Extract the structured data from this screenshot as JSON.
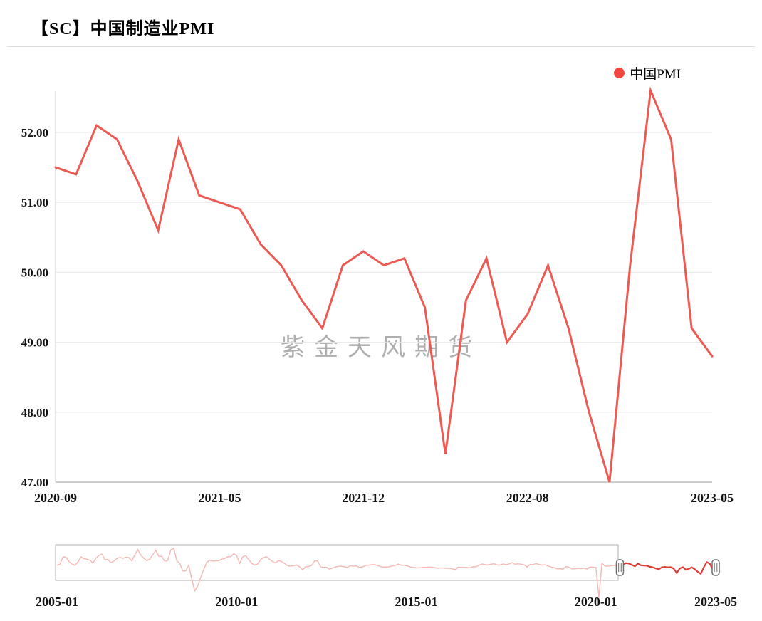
{
  "header": {
    "title": "【SC】中国制造业PMI"
  },
  "legend": {
    "label": "中国PMI",
    "marker_color": "#f2463f"
  },
  "watermark": "紫金天风期货",
  "colors": {
    "line": "#ec5a54",
    "grid": "#e7e7e7",
    "axis": "#9a9a9a",
    "axis_left": "#cccccc",
    "nav_history": "#f5b8b4",
    "nav_selected": "#dd3f38",
    "nav_frame": "#b0b0b0",
    "handle": "#6e6e6e"
  },
  "chart_data": {
    "type": "line",
    "title": "【SC】中国制造业PMI",
    "legend_entries": [
      "中国PMI"
    ],
    "legend_position": "top-right",
    "grid": true,
    "ylim": [
      46.95,
      52.7
    ],
    "yticks": [
      52,
      51,
      50,
      49,
      48,
      47
    ],
    "ytick_labels": [
      "52.00",
      "51.00",
      "50.00",
      "49.00",
      "48.00",
      "47.00"
    ],
    "xtick_labels": [
      "2020-09",
      "2021-05",
      "2021-12",
      "2022-08",
      "2023-05"
    ],
    "xtick_indices": [
      0,
      8,
      15,
      23,
      32
    ],
    "series": [
      {
        "name": "中国PMI",
        "color": "#ec5a54",
        "x": [
          "2020-09",
          "2020-10",
          "2020-11",
          "2020-12",
          "2021-01",
          "2021-02",
          "2021-03",
          "2021-04",
          "2021-05",
          "2021-06",
          "2021-07",
          "2021-08",
          "2021-09",
          "2021-10",
          "2021-11",
          "2021-12",
          "2022-01",
          "2022-02",
          "2022-03",
          "2022-04",
          "2022-05",
          "2022-06",
          "2022-07",
          "2022-08",
          "2022-09",
          "2022-10",
          "2022-11",
          "2022-12",
          "2023-01",
          "2023-02",
          "2023-03",
          "2023-04",
          "2023-05"
        ],
        "values": [
          51.5,
          51.4,
          52.1,
          51.9,
          51.3,
          50.6,
          51.9,
          51.1,
          51.0,
          50.9,
          50.4,
          50.1,
          49.6,
          49.2,
          50.1,
          50.3,
          50.1,
          50.2,
          49.5,
          47.4,
          49.6,
          50.2,
          49.0,
          49.4,
          50.1,
          49.2,
          48.0,
          47.0,
          50.1,
          52.6,
          51.9,
          49.2,
          48.8
        ]
      }
    ],
    "navigator": {
      "type": "line",
      "x_range": [
        "2005-01",
        "2023-05"
      ],
      "xtick_labels": [
        "2005-01",
        "2010-01",
        "2015-01",
        "2020-01",
        "2023-05"
      ],
      "xtick_indices": [
        0,
        60,
        120,
        180,
        220
      ],
      "selected_window": [
        "2020-09",
        "2023-05"
      ],
      "selected_start_index": 188,
      "values": [
        51.1,
        51.6,
        55.1,
        55.0,
        52.9,
        51.7,
        51.1,
        52.6,
        55.1,
        54.3,
        54.0,
        53.5,
        52.1,
        54.5,
        55.8,
        56.4,
        53.8,
        53.9,
        52.4,
        53.1,
        54.3,
        54.9,
        54.4,
        54.9,
        54.8,
        53.2,
        56.1,
        58.6,
        55.9,
        54.5,
        53.3,
        54.0,
        56.1,
        58.2,
        55.4,
        55.3,
        53.0,
        53.4,
        58.4,
        59.2,
        53.3,
        52.0,
        48.4,
        48.4,
        51.2,
        44.6,
        38.8,
        41.2,
        45.3,
        49.0,
        52.4,
        53.5,
        53.1,
        53.2,
        53.3,
        54.0,
        54.3,
        55.2,
        55.2,
        56.6,
        55.8,
        52.0,
        55.1,
        55.7,
        53.9,
        52.1,
        51.2,
        51.7,
        53.8,
        54.7,
        55.2,
        53.9,
        52.9,
        52.2,
        53.4,
        52.9,
        52.0,
        50.9,
        50.7,
        50.9,
        51.2,
        50.4,
        49.0,
        50.3,
        50.5,
        51.0,
        53.1,
        53.3,
        50.4,
        50.2,
        50.1,
        49.2,
        49.8,
        50.2,
        50.6,
        50.6,
        50.4,
        50.1,
        50.9,
        50.6,
        50.8,
        50.1,
        50.3,
        51.0,
        51.1,
        51.4,
        51.4,
        51.0,
        50.5,
        50.2,
        50.3,
        50.4,
        50.8,
        51.0,
        51.7,
        51.1,
        51.1,
        50.8,
        50.3,
        50.1,
        49.8,
        49.9,
        50.1,
        50.1,
        50.2,
        50.2,
        50.0,
        49.7,
        49.8,
        49.8,
        49.6,
        49.7,
        49.4,
        49.0,
        50.2,
        50.1,
        50.1,
        50.0,
        49.9,
        50.4,
        50.4,
        51.2,
        51.7,
        51.4,
        51.3,
        51.6,
        51.8,
        51.2,
        51.2,
        51.7,
        51.4,
        51.7,
        52.4,
        51.6,
        51.8,
        51.6,
        51.3,
        50.3,
        51.5,
        51.4,
        51.9,
        51.5,
        51.2,
        51.3,
        50.8,
        50.2,
        50.0,
        49.4,
        49.5,
        49.2,
        50.5,
        50.1,
        49.4,
        49.4,
        49.7,
        49.5,
        49.8,
        49.3,
        50.2,
        50.2,
        50.0,
        35.7,
        52.0,
        50.8,
        50.6,
        50.9,
        51.1,
        51.0,
        51.5,
        51.4,
        52.1,
        51.9,
        51.3,
        50.6,
        51.9,
        51.1,
        51.0,
        50.9,
        50.4,
        50.1,
        49.6,
        49.2,
        50.1,
        50.3,
        50.1,
        50.2,
        49.5,
        47.4,
        49.6,
        50.2,
        49.0,
        49.4,
        50.1,
        49.2,
        48.0,
        47.0,
        50.1,
        52.6,
        51.9,
        49.2,
        48.8
      ]
    },
    "watermark": "紫金天风期货"
  }
}
